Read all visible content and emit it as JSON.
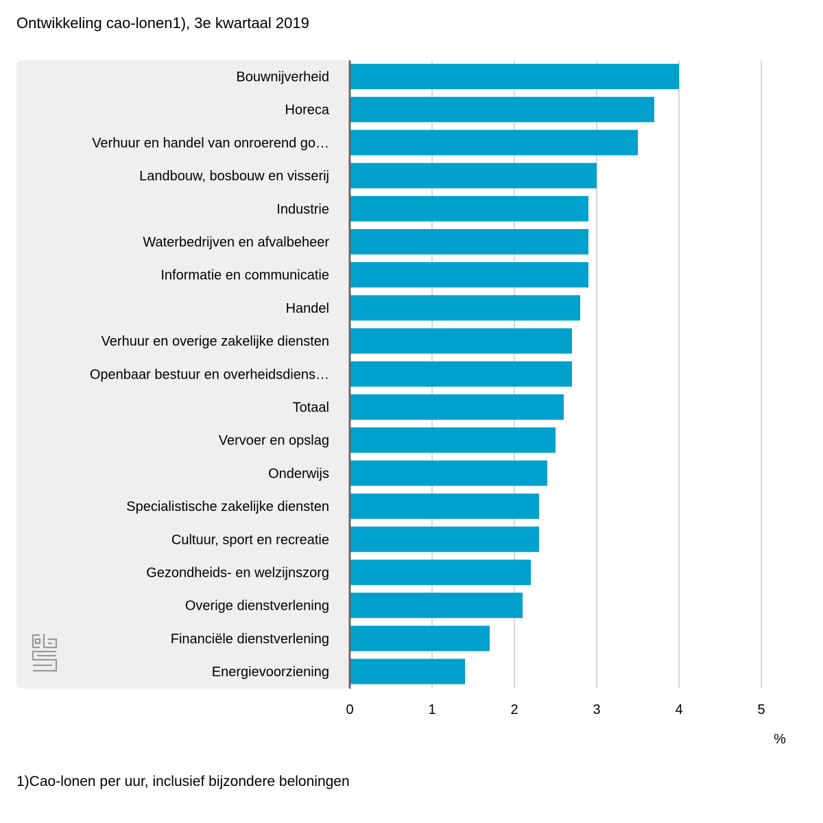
{
  "title": "Ontwikkeling cao-lonen1), 3e kwartaal 2019",
  "footnote": "1)Cao-lonen per uur, inclusief bijzondere beloningen",
  "logo": {
    "icon": "cbs-logo-icon",
    "color": "#9a9a9a"
  },
  "colors": {
    "bar": "#00a1cd",
    "label_panel": "#efefef",
    "gridline": "#cccccc",
    "axis": "#666666"
  },
  "chart_data": {
    "type": "bar",
    "orientation": "horizontal",
    "title": "Ontwikkeling cao-lonen1), 3e kwartaal 2019",
    "xlabel": "%",
    "ylabel": "",
    "xlim": [
      0,
      5
    ],
    "xticks": [
      "0",
      "1",
      "2",
      "3",
      "4",
      "5"
    ],
    "grid": true,
    "legend": "none",
    "categories": [
      "Bouwnijverheid",
      "Horeca",
      "Verhuur en handel van onroerend go…",
      "Landbouw, bosbouw en visserij",
      "Industrie",
      "Waterbedrijven en afvalbeheer",
      "Informatie en communicatie",
      "Handel",
      "Verhuur en overige zakelijke diensten",
      "Openbaar bestuur en overheidsdiens…",
      "Totaal",
      "Vervoer en opslag",
      "Onderwijs",
      "Specialistische zakelijke diensten",
      "Cultuur, sport en recreatie",
      "Gezondheids- en welzijnszorg",
      "Overige dienstverlening",
      "Financiële dienstverlening",
      "Energievoorziening"
    ],
    "values": [
      4.0,
      3.7,
      3.5,
      3.0,
      2.9,
      2.9,
      2.9,
      2.8,
      2.7,
      2.7,
      2.6,
      2.5,
      2.4,
      2.3,
      2.3,
      2.2,
      2.1,
      1.7,
      1.4
    ]
  }
}
